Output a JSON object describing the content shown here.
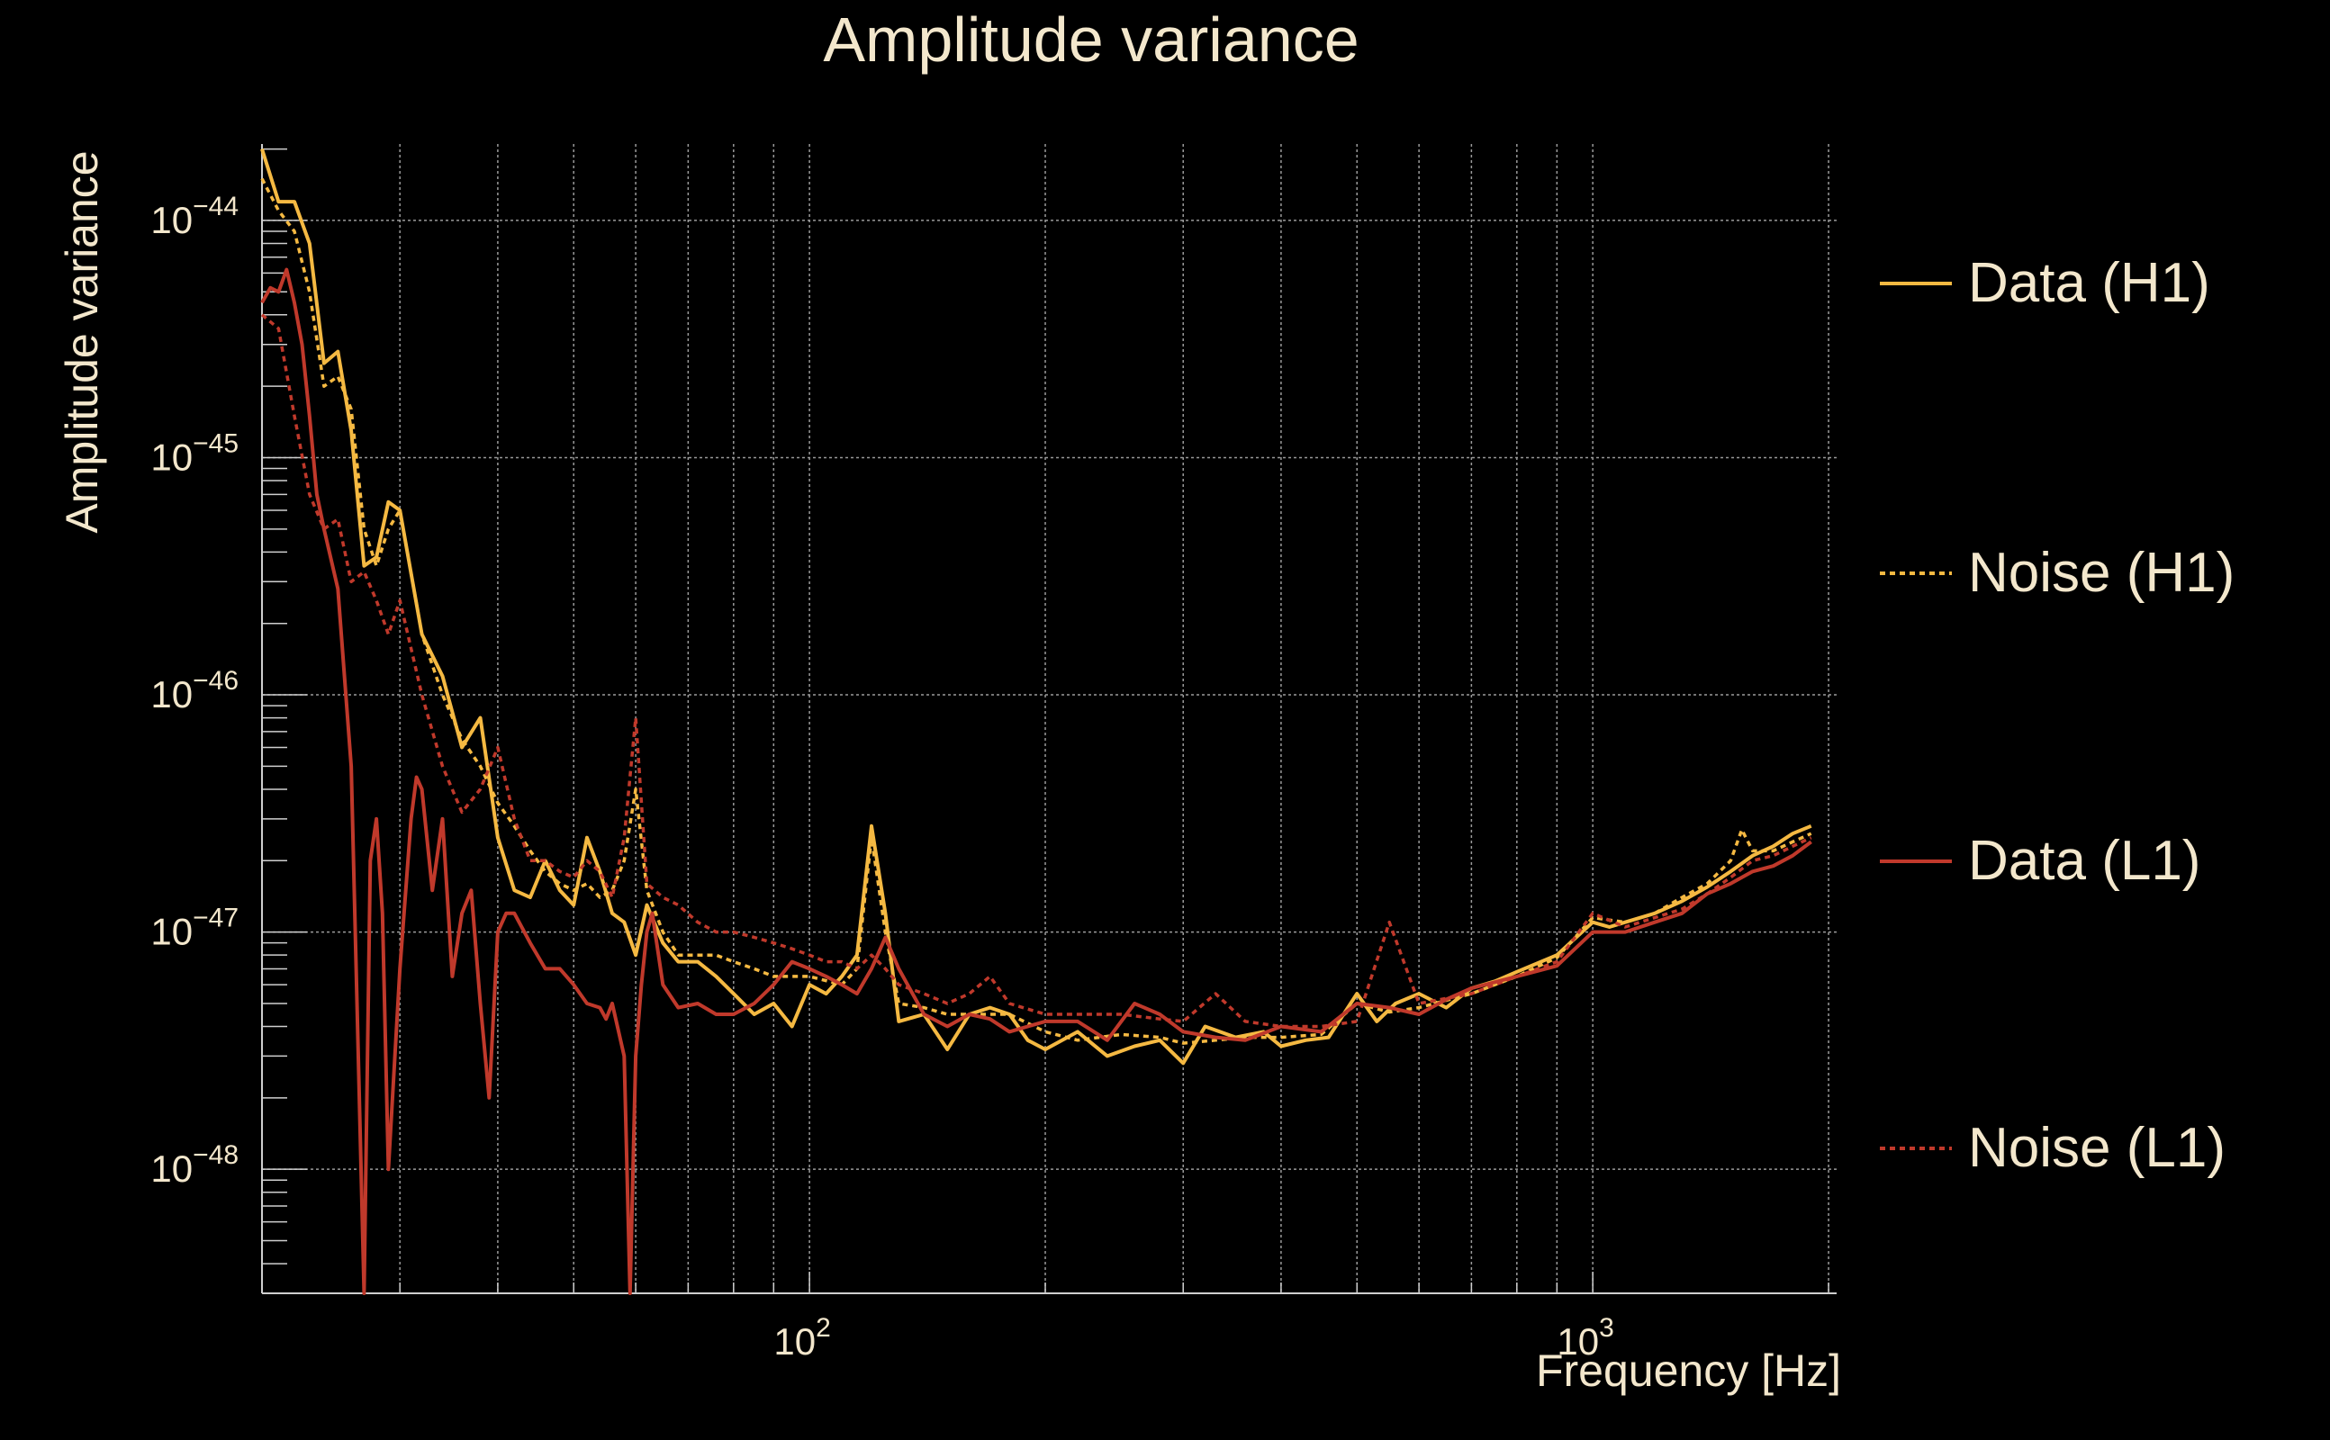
{
  "chart_data": {
    "type": "line",
    "title": "Amplitude variance",
    "xlabel": "Frequency [Hz]",
    "ylabel": "Amplitude variance",
    "x_scale": "log",
    "y_scale": "log",
    "xlim": [
      20,
      2048
    ],
    "ylim": [
      3e-49,
      2.1e-44
    ],
    "grid": true,
    "legend_position": "right",
    "x_ticks": [
      {
        "value": 100,
        "base": "10",
        "exp": "2"
      },
      {
        "value": 1000,
        "base": "10",
        "exp": "3"
      }
    ],
    "y_ticks": [
      {
        "value": 1e-44,
        "base": "10",
        "exp": "−44"
      },
      {
        "value": 1e-45,
        "base": "10",
        "exp": "−45"
      },
      {
        "value": 1e-46,
        "base": "10",
        "exp": "−46"
      },
      {
        "value": 1e-47,
        "base": "10",
        "exp": "−47"
      },
      {
        "value": 1e-48,
        "base": "10",
        "exp": "−48"
      }
    ],
    "series": [
      {
        "name": "Data (H1)",
        "color": "#f5b942",
        "dash": "solid",
        "x": [
          20,
          21,
          22,
          23,
          24,
          25,
          26,
          27,
          28,
          29,
          30,
          32,
          34,
          36,
          38,
          40,
          42,
          44,
          46,
          48,
          50,
          52,
          54,
          56,
          58,
          60,
          62,
          65,
          68,
          72,
          76,
          80,
          85,
          90,
          95,
          100,
          105,
          110,
          115,
          120,
          125,
          130,
          140,
          150,
          160,
          170,
          180,
          190,
          200,
          220,
          240,
          260,
          280,
          300,
          320,
          350,
          380,
          400,
          430,
          460,
          500,
          530,
          560,
          600,
          650,
          700,
          750,
          800,
          900,
          1000,
          1050,
          1100,
          1200,
          1300,
          1400,
          1500,
          1600,
          1700,
          1800,
          1900
        ],
        "y": [
          2e-44,
          1.2e-44,
          1.2e-44,
          8e-45,
          2.5e-45,
          2.8e-45,
          1.3e-45,
          3.5e-46,
          3.8e-46,
          6.5e-46,
          6e-46,
          1.8e-46,
          1.2e-46,
          6e-47,
          8e-47,
          2.5e-47,
          1.5e-47,
          1.4e-47,
          2e-47,
          1.5e-47,
          1.3e-47,
          2.5e-47,
          1.8e-47,
          1.2e-47,
          1.1e-47,
          8e-48,
          1.3e-47,
          9e-48,
          7.5e-48,
          7.5e-48,
          6.5e-48,
          5.5e-48,
          4.5e-48,
          5e-48,
          4e-48,
          6e-48,
          5.5e-48,
          6.5e-48,
          8e-48,
          2.8e-47,
          1.2e-47,
          4.2e-48,
          4.5e-48,
          3.2e-48,
          4.5e-48,
          4.8e-48,
          4.5e-48,
          3.5e-48,
          3.2e-48,
          3.8e-48,
          3e-48,
          3.3e-48,
          3.5e-48,
          2.8e-48,
          4e-48,
          3.6e-48,
          3.8e-48,
          3.3e-48,
          3.5e-48,
          3.6e-48,
          5.5e-48,
          4.2e-48,
          5e-48,
          5.5e-48,
          4.8e-48,
          5.8e-48,
          6.2e-48,
          6.8e-48,
          8e-48,
          1.1e-47,
          1.05e-47,
          1.1e-47,
          1.2e-47,
          1.35e-47,
          1.55e-47,
          1.8e-47,
          2.1e-47,
          2.3e-47,
          2.6e-47,
          2.8e-47
        ]
      },
      {
        "name": "Noise (H1)",
        "color": "#f5b942",
        "dash": "dotted",
        "x": [
          20,
          21,
          22,
          23,
          24,
          25,
          26,
          27,
          28,
          29,
          30,
          32,
          34,
          36,
          38,
          40,
          42,
          44,
          46,
          48,
          50,
          52,
          54,
          56,
          58,
          60,
          62,
          65,
          68,
          72,
          76,
          80,
          85,
          90,
          95,
          100,
          110,
          115,
          120,
          125,
          130,
          140,
          150,
          160,
          170,
          180,
          200,
          220,
          250,
          280,
          300,
          330,
          360,
          400,
          450,
          500,
          550,
          600,
          700,
          800,
          900,
          1000,
          1100,
          1200,
          1300,
          1400,
          1500,
          1550,
          1600,
          1700,
          1800,
          1900
        ],
        "y": [
          1.5e-44,
          1.1e-44,
          9e-45,
          5e-45,
          2e-45,
          2.2e-45,
          1.6e-45,
          5e-46,
          3.5e-46,
          5e-46,
          6e-46,
          1.8e-46,
          1e-46,
          6.5e-47,
          5e-47,
          3.5e-47,
          2.8e-47,
          2.2e-47,
          1.8e-47,
          1.6e-47,
          1.5e-47,
          1.6e-47,
          1.4e-47,
          1.5e-47,
          2e-47,
          4e-47,
          1.5e-47,
          1e-47,
          8e-48,
          8e-48,
          8e-48,
          7.5e-48,
          7e-48,
          6.5e-48,
          6.5e-48,
          6.5e-48,
          6e-48,
          7e-48,
          2.5e-47,
          1e-47,
          5e-48,
          4.8e-48,
          4.5e-48,
          4.5e-48,
          4.5e-48,
          4.5e-48,
          3.8e-48,
          3.5e-48,
          3.7e-48,
          3.6e-48,
          3.4e-48,
          3.5e-48,
          3.6e-48,
          3.6e-48,
          3.7e-48,
          5e-48,
          4.6e-48,
          4.8e-48,
          5.5e-48,
          6.5e-48,
          7.8e-48,
          1.15e-47,
          1.1e-47,
          1.2e-47,
          1.4e-47,
          1.6e-47,
          2e-47,
          2.7e-47,
          2.2e-47,
          2.2e-47,
          2.4e-47,
          2.6e-47
        ]
      },
      {
        "name": "Data (L1)",
        "color": "#c0392b",
        "dash": "solid",
        "x": [
          20,
          20.5,
          21,
          21.5,
          22,
          22.5,
          23,
          23.5,
          24,
          25,
          26,
          27,
          27.5,
          28,
          28.5,
          29,
          30,
          31,
          31.5,
          32,
          33,
          34,
          35,
          36,
          37,
          38,
          39,
          40,
          41,
          42,
          44,
          46,
          48,
          50,
          52,
          54,
          55,
          56,
          58,
          59,
          60,
          61,
          62,
          63,
          65,
          68,
          72,
          76,
          80,
          85,
          90,
          95,
          100,
          105,
          110,
          115,
          120,
          125,
          130,
          140,
          150,
          160,
          170,
          180,
          200,
          220,
          240,
          260,
          280,
          300,
          330,
          360,
          400,
          450,
          500,
          550,
          600,
          650,
          700,
          800,
          900,
          1000,
          1100,
          1200,
          1300,
          1400,
          1500,
          1600,
          1700,
          1800,
          1900
        ],
        "y": [
          4.5e-45,
          5.2e-45,
          5e-45,
          6.2e-45,
          4.5e-45,
          3e-45,
          1.5e-45,
          7e-46,
          5e-46,
          2.8e-46,
          5e-47,
          3e-49,
          2e-47,
          3e-47,
          1.2e-47,
          1e-48,
          7e-48,
          3e-47,
          4.5e-47,
          4e-47,
          1.5e-47,
          3e-47,
          6.5e-48,
          1.2e-47,
          1.5e-47,
          5e-48,
          2e-48,
          1e-47,
          1.2e-47,
          1.2e-47,
          9e-48,
          7e-48,
          7e-48,
          6e-48,
          5e-48,
          4.8e-48,
          4.3e-48,
          5e-48,
          3e-48,
          3e-49,
          3e-48,
          6e-48,
          1e-47,
          1.2e-47,
          6e-48,
          4.8e-48,
          5e-48,
          4.5e-48,
          4.5e-48,
          5e-48,
          6e-48,
          7.5e-48,
          7e-48,
          6.5e-48,
          6e-48,
          5.5e-48,
          7e-48,
          9.5e-48,
          7e-48,
          4.5e-48,
          4e-48,
          4.5e-48,
          4.3e-48,
          3.8e-48,
          4.2e-48,
          4.2e-48,
          3.5e-48,
          5e-48,
          4.5e-48,
          3.8e-48,
          3.6e-48,
          3.5e-48,
          4e-48,
          3.8e-48,
          5e-48,
          4.8e-48,
          4.5e-48,
          5.2e-48,
          5.8e-48,
          6.5e-48,
          7.2e-48,
          1e-47,
          1e-47,
          1.1e-47,
          1.2e-47,
          1.45e-47,
          1.6e-47,
          1.8e-47,
          1.9e-47,
          2.1e-47,
          2.4e-47
        ]
      },
      {
        "name": "Noise (L1)",
        "color": "#c0392b",
        "dash": "dotted",
        "x": [
          20,
          21,
          22,
          23,
          24,
          25,
          26,
          27,
          28,
          29,
          30,
          32,
          34,
          36,
          38,
          40,
          42,
          44,
          46,
          48,
          50,
          52,
          54,
          56,
          58,
          60,
          62,
          65,
          68,
          72,
          76,
          80,
          85,
          90,
          95,
          100,
          105,
          110,
          115,
          120,
          125,
          130,
          140,
          150,
          160,
          170,
          180,
          200,
          220,
          250,
          280,
          300,
          330,
          360,
          400,
          450,
          500,
          550,
          600,
          700,
          800,
          900,
          1000,
          1100,
          1200,
          1300,
          1400,
          1500,
          1600,
          1700,
          1800,
          1900
        ],
        "y": [
          4e-45,
          3.5e-45,
          1.5e-45,
          7e-46,
          5e-46,
          5.5e-46,
          3e-46,
          3.3e-46,
          2.5e-46,
          1.8e-46,
          2.5e-46,
          1e-46,
          5e-47,
          3.2e-47,
          4e-47,
          6e-47,
          3e-47,
          2e-47,
          2e-47,
          1.8e-47,
          1.7e-47,
          2e-47,
          1.8e-47,
          1.4e-47,
          2.5e-47,
          8e-47,
          1.6e-47,
          1.4e-47,
          1.3e-47,
          1.1e-47,
          1e-47,
          1e-47,
          9.5e-48,
          9e-48,
          8.5e-48,
          8e-48,
          7.5e-48,
          7.5e-48,
          7e-48,
          8e-48,
          7e-48,
          6e-48,
          5.5e-48,
          5e-48,
          5.5e-48,
          6.5e-48,
          5e-48,
          4.5e-48,
          4.5e-48,
          4.5e-48,
          4.3e-48,
          4.2e-48,
          5.5e-48,
          4.2e-48,
          4e-48,
          4e-48,
          4.2e-48,
          1.1e-47,
          5e-48,
          5.5e-48,
          6.5e-48,
          7.5e-48,
          1.2e-47,
          1.05e-47,
          1.15e-47,
          1.25e-47,
          1.45e-47,
          1.7e-47,
          2e-47,
          2.1e-47,
          2.3e-47,
          2.5e-47
        ]
      }
    ]
  }
}
